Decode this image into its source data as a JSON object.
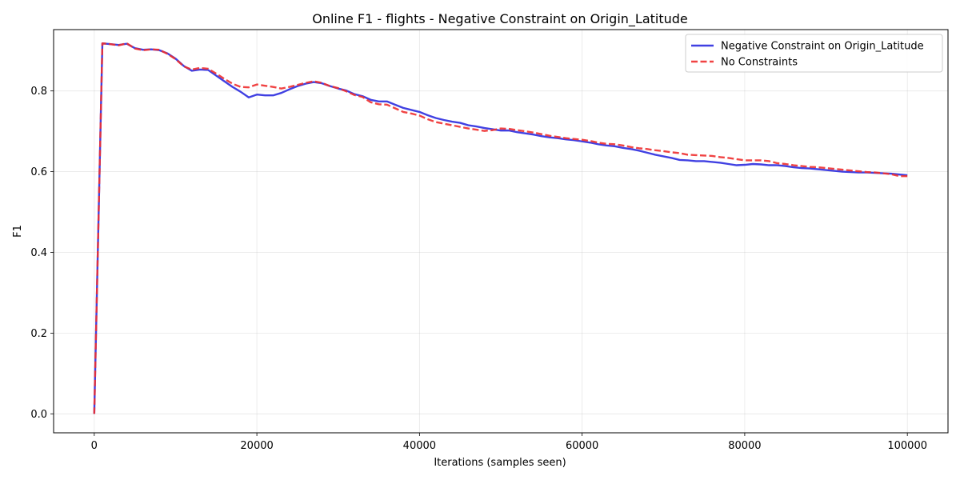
{
  "chart_data": {
    "type": "line",
    "title": "Online F1 - flights - Negative Constraint on Origin_Latitude",
    "xlabel": "Iterations (samples seen)",
    "ylabel": "F1",
    "xlim": [
      -5000,
      105000
    ],
    "ylim": [
      -0.047,
      0.952
    ],
    "xticks": [
      0,
      20000,
      40000,
      60000,
      80000,
      100000
    ],
    "xtick_labels": [
      "0",
      "20000",
      "40000",
      "60000",
      "80000",
      "100000"
    ],
    "yticks": [
      0.0,
      0.2,
      0.4,
      0.6,
      0.8
    ],
    "ytick_labels": [
      "0.0",
      "0.2",
      "0.4",
      "0.6",
      "0.8"
    ],
    "grid": true,
    "legend_position": "top-right",
    "series": [
      {
        "name": "Negative Constraint on Origin_Latitude",
        "color": "#2b2bdf",
        "style": "solid",
        "x": [
          0,
          1000,
          2000,
          3000,
          4000,
          5000,
          6000,
          7000,
          8000,
          9000,
          10000,
          11000,
          12000,
          13000,
          14000,
          15000,
          16000,
          17000,
          18000,
          19000,
          20000,
          21000,
          22000,
          23000,
          24000,
          25000,
          26000,
          27000,
          28000,
          29000,
          30000,
          31000,
          32000,
          33000,
          34000,
          35000,
          36000,
          37000,
          38000,
          39000,
          40000,
          41000,
          42000,
          43000,
          44000,
          45000,
          46000,
          47000,
          48000,
          49000,
          50000,
          51000,
          52000,
          53000,
          54000,
          55000,
          56000,
          57000,
          58000,
          59000,
          60000,
          61000,
          62000,
          63000,
          64000,
          65000,
          66000,
          67000,
          68000,
          69000,
          70000,
          71000,
          72000,
          73000,
          74000,
          75000,
          76000,
          77000,
          78000,
          79000,
          80000,
          81000,
          82000,
          83000,
          84000,
          85000,
          86000,
          87000,
          88000,
          89000,
          90000,
          91000,
          92000,
          93000,
          94000,
          95000,
          96000,
          97000,
          98000,
          99000,
          100000
        ],
        "y": [
          0.0,
          0.918,
          0.916,
          0.914,
          0.917,
          0.906,
          0.902,
          0.903,
          0.901,
          0.893,
          0.88,
          0.862,
          0.85,
          0.853,
          0.852,
          0.838,
          0.824,
          0.81,
          0.798,
          0.784,
          0.791,
          0.789,
          0.789,
          0.795,
          0.804,
          0.812,
          0.818,
          0.822,
          0.819,
          0.812,
          0.806,
          0.801,
          0.792,
          0.787,
          0.778,
          0.774,
          0.774,
          0.766,
          0.758,
          0.753,
          0.748,
          0.74,
          0.733,
          0.728,
          0.724,
          0.721,
          0.715,
          0.712,
          0.708,
          0.705,
          0.702,
          0.702,
          0.698,
          0.695,
          0.692,
          0.688,
          0.685,
          0.683,
          0.68,
          0.678,
          0.675,
          0.672,
          0.668,
          0.665,
          0.663,
          0.659,
          0.656,
          0.652,
          0.647,
          0.642,
          0.638,
          0.634,
          0.629,
          0.628,
          0.626,
          0.626,
          0.624,
          0.622,
          0.619,
          0.616,
          0.617,
          0.619,
          0.618,
          0.616,
          0.616,
          0.614,
          0.611,
          0.609,
          0.608,
          0.606,
          0.604,
          0.602,
          0.6,
          0.599,
          0.598,
          0.598,
          0.597,
          0.596,
          0.595,
          0.593,
          0.591
        ]
      },
      {
        "name": "No Constraints",
        "color": "#ee2f2f",
        "style": "dashed",
        "x": [
          0,
          1000,
          2000,
          3000,
          4000,
          5000,
          6000,
          7000,
          8000,
          9000,
          10000,
          11000,
          12000,
          13000,
          14000,
          15000,
          16000,
          17000,
          18000,
          19000,
          20000,
          21000,
          22000,
          23000,
          24000,
          25000,
          26000,
          27000,
          28000,
          29000,
          30000,
          31000,
          32000,
          33000,
          34000,
          35000,
          36000,
          37000,
          38000,
          39000,
          40000,
          41000,
          42000,
          43000,
          44000,
          45000,
          46000,
          47000,
          48000,
          49000,
          50000,
          51000,
          52000,
          53000,
          54000,
          55000,
          56000,
          57000,
          58000,
          59000,
          60000,
          61000,
          62000,
          63000,
          64000,
          65000,
          66000,
          67000,
          68000,
          69000,
          70000,
          71000,
          72000,
          73000,
          74000,
          75000,
          76000,
          77000,
          78000,
          79000,
          80000,
          81000,
          82000,
          83000,
          84000,
          85000,
          86000,
          87000,
          88000,
          89000,
          90000,
          91000,
          92000,
          93000,
          94000,
          95000,
          96000,
          97000,
          98000,
          99000,
          100000
        ],
        "y": [
          0.0,
          0.918,
          0.916,
          0.913,
          0.918,
          0.905,
          0.901,
          0.903,
          0.902,
          0.892,
          0.879,
          0.861,
          0.853,
          0.857,
          0.855,
          0.843,
          0.83,
          0.818,
          0.81,
          0.809,
          0.816,
          0.813,
          0.81,
          0.806,
          0.81,
          0.815,
          0.82,
          0.824,
          0.82,
          0.812,
          0.807,
          0.799,
          0.79,
          0.785,
          0.772,
          0.767,
          0.766,
          0.757,
          0.748,
          0.744,
          0.739,
          0.73,
          0.723,
          0.719,
          0.715,
          0.711,
          0.707,
          0.704,
          0.701,
          0.703,
          0.707,
          0.706,
          0.703,
          0.7,
          0.697,
          0.693,
          0.689,
          0.686,
          0.683,
          0.681,
          0.679,
          0.676,
          0.672,
          0.669,
          0.668,
          0.665,
          0.661,
          0.658,
          0.656,
          0.653,
          0.651,
          0.648,
          0.646,
          0.642,
          0.641,
          0.64,
          0.639,
          0.636,
          0.634,
          0.631,
          0.628,
          0.628,
          0.628,
          0.626,
          0.621,
          0.619,
          0.616,
          0.614,
          0.612,
          0.611,
          0.609,
          0.607,
          0.605,
          0.603,
          0.601,
          0.599,
          0.598,
          0.596,
          0.594,
          0.589,
          0.589
        ]
      }
    ]
  }
}
